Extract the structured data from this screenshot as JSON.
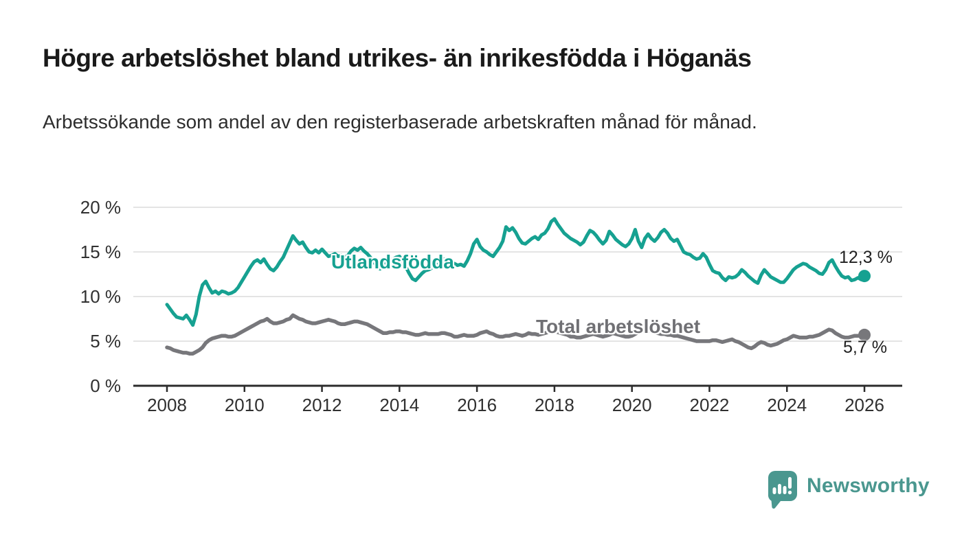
{
  "chart_data": {
    "type": "line",
    "title": "Högre arbetslöshet bland utrikes- än inrikesfödda i Höganäs",
    "subtitle": "Arbetssökande som andel av den registerbaserade arbetskraften månad för månad.",
    "xlabel": "",
    "ylabel": "",
    "xlim": [
      2007.6,
      2026.9
    ],
    "ylim": [
      0,
      20
    ],
    "grid": "horizontal",
    "legend_position": "inline-labels",
    "x_ticks": [
      2008,
      2010,
      2012,
      2014,
      2016,
      2018,
      2020,
      2022,
      2024,
      2026
    ],
    "x_tick_labels": [
      "2008",
      "2010",
      "2012",
      "2014",
      "2016",
      "2018",
      "2020",
      "2022",
      "2024",
      "2026"
    ],
    "y_ticks": [
      0,
      5,
      10,
      15,
      20
    ],
    "y_tick_labels": [
      "0 %",
      "5 %",
      "10 %",
      "15 %",
      "20 %"
    ],
    "colors": {
      "grid": "#dcdcdc",
      "axis": "#2b2b2b",
      "tick_text": "#303030"
    },
    "series": [
      {
        "id": "utlandsfodda",
        "name": "Utlandsfödda",
        "color": "#16a191",
        "stroke_width": 5,
        "start_year": 2008,
        "frequency": "monthly",
        "end_value": 12.3,
        "end_label": "12,3 %",
        "monthly_values": [
          9.1,
          8.6,
          8.1,
          7.7,
          7.6,
          7.5,
          7.9,
          7.4,
          6.8,
          8.0,
          10.0,
          11.3,
          11.7,
          11.0,
          10.4,
          10.6,
          10.3,
          10.6,
          10.5,
          10.3,
          10.4,
          10.6,
          11.0,
          11.6,
          12.2,
          12.8,
          13.4,
          13.9,
          14.1,
          13.8,
          14.2,
          13.6,
          13.1,
          12.9,
          13.3,
          13.9,
          14.4,
          15.2,
          16.0,
          16.8,
          16.3,
          15.9,
          16.1,
          15.5,
          15.0,
          14.9,
          15.2,
          14.9,
          15.3,
          14.9,
          14.5,
          14.6,
          14.8,
          14.5,
          14.6,
          14.4,
          14.6,
          15.1,
          15.4,
          15.2,
          15.5,
          15.1,
          14.8,
          14.4,
          13.9,
          13.4,
          13.1,
          13.5,
          13.8,
          14.0,
          14.2,
          14.4,
          14.5,
          14.0,
          13.3,
          12.6,
          12.0,
          11.8,
          12.2,
          12.6,
          12.9,
          13.0,
          13.2,
          13.4,
          13.6,
          13.9,
          14.2,
          13.9,
          13.6,
          13.7,
          13.5,
          13.6,
          13.4,
          14.0,
          14.8,
          15.9,
          16.4,
          15.6,
          15.2,
          15.0,
          14.7,
          14.5,
          15.0,
          15.5,
          16.2,
          17.8,
          17.4,
          17.7,
          17.2,
          16.5,
          16.0,
          15.9,
          16.2,
          16.5,
          16.7,
          16.4,
          16.9,
          17.1,
          17.6,
          18.4,
          18.7,
          18.1,
          17.6,
          17.1,
          16.8,
          16.5,
          16.3,
          16.1,
          15.8,
          16.1,
          16.8,
          17.4,
          17.2,
          16.8,
          16.3,
          15.9,
          16.3,
          17.3,
          16.9,
          16.4,
          16.1,
          15.8,
          15.6,
          15.9,
          16.5,
          17.5,
          16.2,
          15.5,
          16.5,
          17.0,
          16.5,
          16.2,
          16.6,
          17.2,
          17.5,
          17.1,
          16.5,
          16.2,
          16.4,
          15.7,
          15.0,
          14.8,
          14.7,
          14.4,
          14.2,
          14.3,
          14.8,
          14.4,
          13.6,
          12.9,
          12.7,
          12.6,
          12.1,
          11.8,
          12.2,
          12.1,
          12.2,
          12.5,
          13.0,
          12.7,
          12.3,
          12.0,
          11.7,
          11.5,
          12.4,
          13.0,
          12.6,
          12.2,
          12.0,
          11.8,
          11.6,
          11.6,
          12.0,
          12.5,
          13.0,
          13.3,
          13.5,
          13.7,
          13.6,
          13.3,
          13.1,
          12.9,
          12.6,
          12.5,
          13.0,
          13.8,
          14.1,
          13.4,
          12.8,
          12.3,
          12.1,
          12.2,
          11.8,
          11.9,
          12.1,
          11.9,
          12.3
        ]
      },
      {
        "id": "total",
        "name": "Total arbetslöshet",
        "color": "#77777b",
        "stroke_width": 5.5,
        "start_year": 2008,
        "frequency": "monthly",
        "end_value": 5.7,
        "end_label": "5,7 %",
        "monthly_values": [
          4.3,
          4.2,
          4.0,
          3.9,
          3.8,
          3.7,
          3.7,
          3.6,
          3.6,
          3.8,
          4.0,
          4.3,
          4.8,
          5.1,
          5.3,
          5.4,
          5.5,
          5.6,
          5.6,
          5.5,
          5.5,
          5.6,
          5.8,
          6.0,
          6.2,
          6.4,
          6.6,
          6.8,
          7.0,
          7.2,
          7.3,
          7.5,
          7.2,
          7.0,
          7.0,
          7.1,
          7.2,
          7.4,
          7.5,
          7.9,
          7.7,
          7.5,
          7.4,
          7.2,
          7.1,
          7.0,
          7.0,
          7.1,
          7.2,
          7.3,
          7.4,
          7.3,
          7.2,
          7.0,
          6.9,
          6.9,
          7.0,
          7.1,
          7.2,
          7.2,
          7.1,
          7.0,
          6.9,
          6.7,
          6.5,
          6.3,
          6.1,
          5.9,
          5.9,
          6.0,
          6.0,
          6.1,
          6.1,
          6.0,
          6.0,
          5.9,
          5.8,
          5.7,
          5.7,
          5.8,
          5.9,
          5.8,
          5.8,
          5.8,
          5.8,
          5.9,
          5.9,
          5.8,
          5.7,
          5.5,
          5.5,
          5.6,
          5.7,
          5.6,
          5.6,
          5.6,
          5.7,
          5.9,
          6.0,
          6.1,
          5.9,
          5.8,
          5.6,
          5.5,
          5.5,
          5.6,
          5.6,
          5.7,
          5.8,
          5.7,
          5.6,
          5.7,
          5.9,
          5.8,
          5.8,
          5.7,
          5.8,
          5.9,
          6.0,
          6.1,
          6.1,
          6.0,
          5.9,
          5.8,
          5.7,
          5.5,
          5.5,
          5.4,
          5.4,
          5.5,
          5.6,
          5.7,
          5.8,
          5.7,
          5.6,
          5.5,
          5.6,
          5.7,
          5.9,
          5.8,
          5.7,
          5.6,
          5.5,
          5.5,
          5.6,
          5.8,
          6.0,
          6.2,
          6.3,
          6.2,
          6.1,
          6.0,
          5.9,
          5.8,
          5.8,
          5.7,
          5.7,
          5.6,
          5.6,
          5.5,
          5.4,
          5.3,
          5.2,
          5.1,
          5.0,
          5.0,
          5.0,
          5.0,
          5.0,
          5.1,
          5.1,
          5.0,
          4.9,
          5.0,
          5.1,
          5.2,
          5.0,
          4.9,
          4.7,
          4.5,
          4.3,
          4.2,
          4.4,
          4.7,
          4.9,
          4.8,
          4.6,
          4.5,
          4.6,
          4.7,
          4.9,
          5.1,
          5.2,
          5.4,
          5.6,
          5.5,
          5.4,
          5.4,
          5.4,
          5.5,
          5.5,
          5.6,
          5.7,
          5.9,
          6.1,
          6.3,
          6.2,
          5.9,
          5.7,
          5.5,
          5.4,
          5.4,
          5.5,
          5.6,
          5.6,
          5.6,
          5.7
        ]
      }
    ]
  },
  "branding": {
    "logo_text": "Newsworthy",
    "logo_color": "#4a978f",
    "logo_icon": "bar-chart-speech-bubble-icon"
  }
}
